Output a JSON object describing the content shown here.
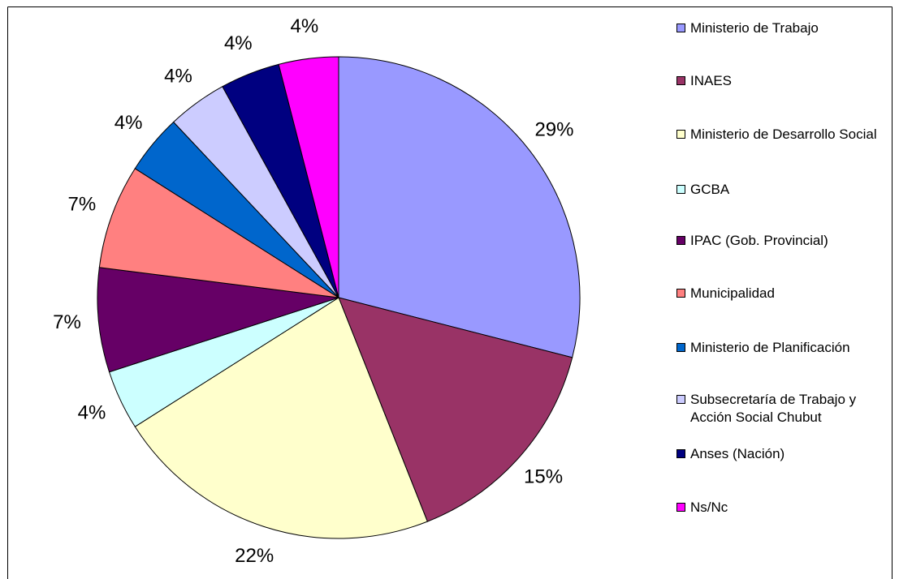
{
  "chart_data": {
    "type": "pie",
    "categories": [
      "Ministerio de Trabajo",
      "INAES",
      "Ministerio de Desarrollo Social",
      "GCBA",
      "IPAC (Gob. Provincial)",
      "Municipalidad",
      "Ministerio de Planificación",
      "Subsecretaría de Trabajo y Acción Social Chubut",
      "Anses (Nación)",
      "Ns/Nc"
    ],
    "values": [
      29,
      15,
      22,
      4,
      7,
      7,
      4,
      4,
      4,
      4
    ],
    "value_labels": [
      "29%",
      "15%",
      "22%",
      "4%",
      "7%",
      "7%",
      "4%",
      "4%",
      "4%",
      "4%"
    ],
    "colors": [
      "#9999FF",
      "#993366",
      "#FFFFCC",
      "#CCFFFF",
      "#660066",
      "#FF8080",
      "#0066CC",
      "#CCCCFF",
      "#000080",
      "#FF00FF"
    ],
    "legend": "right"
  }
}
